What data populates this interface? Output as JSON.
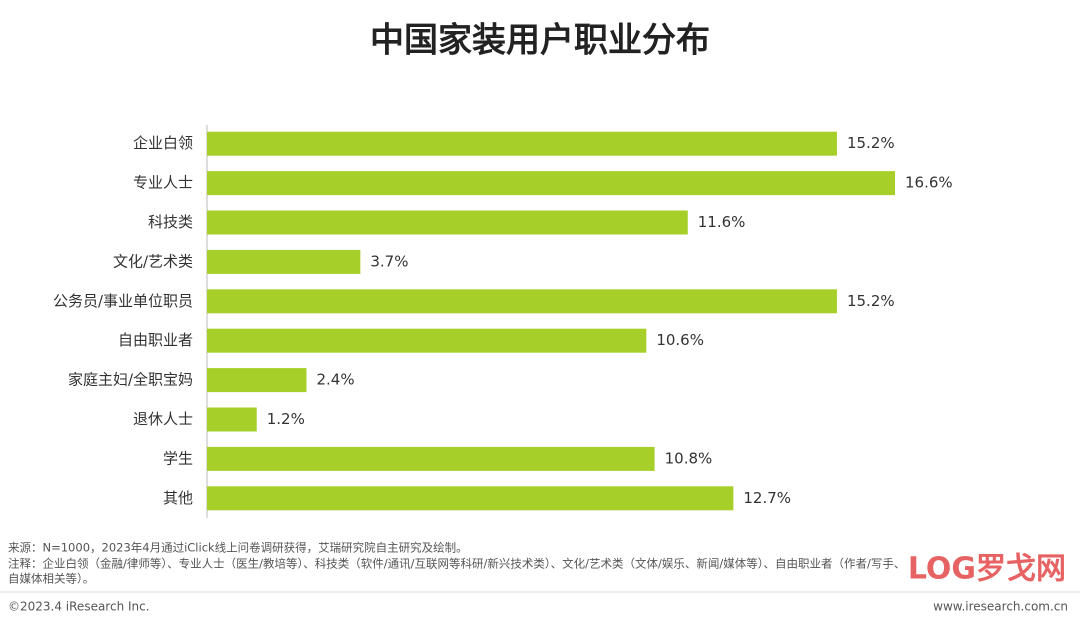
{
  "chart_data": {
    "type": "bar",
    "orientation": "horizontal",
    "title": "中国家装用户职业分布",
    "categories": [
      "企业白领",
      "专业人士",
      "科技类",
      "文化/艺术类",
      "公务员/事业单位职员",
      "自由职业者",
      "家庭主妇/全职宝妈",
      "退休人士",
      "学生",
      "其他"
    ],
    "values": [
      15.2,
      16.6,
      11.6,
      3.7,
      15.2,
      10.6,
      2.4,
      1.2,
      10.8,
      12.7
    ],
    "value_labels": [
      "15.2%",
      "16.6%",
      "11.6%",
      "3.7%",
      "15.2%",
      "10.6%",
      "2.4%",
      "1.2%",
      "10.8%",
      "12.7%"
    ],
    "color": "#a6cf2a"
  },
  "footer": {
    "source": "来源：N=1000，2023年4月通过iClick线上问卷调研获得，艾瑞研究院自主研究及绘制。",
    "note_lines": [
      "注释：企业白领（金融/律师等）、专业人士（医生/教培等）、科技类（软件/通讯/互联网等科研/新兴技术类）、文化/艺术类（文体/娱乐、新闻/媒体等）、自由职业者（作者/写手、",
      "自媒体相关等）。"
    ],
    "copyright": "©2023.4 iResearch Inc.",
    "website": "www.iresearch.com.cn",
    "watermark": "LOG罗戈网"
  }
}
